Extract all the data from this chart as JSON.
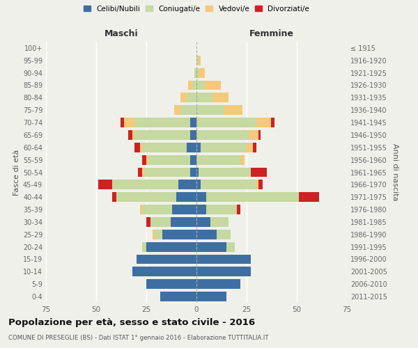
{
  "age_groups": [
    "0-4",
    "5-9",
    "10-14",
    "15-19",
    "20-24",
    "25-29",
    "30-34",
    "35-39",
    "40-44",
    "45-49",
    "50-54",
    "55-59",
    "60-64",
    "65-69",
    "70-74",
    "75-79",
    "80-84",
    "85-89",
    "90-94",
    "95-99",
    "100+"
  ],
  "birth_years": [
    "2011-2015",
    "2006-2010",
    "2001-2005",
    "1996-2000",
    "1991-1995",
    "1986-1990",
    "1981-1985",
    "1976-1980",
    "1971-1975",
    "1966-1970",
    "1961-1965",
    "1956-1960",
    "1951-1955",
    "1946-1950",
    "1941-1945",
    "1936-1940",
    "1931-1935",
    "1926-1930",
    "1921-1925",
    "1916-1920",
    "≤ 1915"
  ],
  "male": {
    "celibi": [
      18,
      25,
      32,
      30,
      25,
      17,
      13,
      12,
      10,
      9,
      3,
      3,
      5,
      3,
      3,
      0,
      0,
      0,
      0,
      0,
      0
    ],
    "coniugati": [
      0,
      0,
      0,
      0,
      2,
      4,
      10,
      15,
      30,
      33,
      23,
      21,
      22,
      28,
      28,
      8,
      5,
      2,
      1,
      0,
      0
    ],
    "vedovi": [
      0,
      0,
      0,
      0,
      0,
      1,
      0,
      1,
      0,
      0,
      1,
      1,
      1,
      1,
      5,
      3,
      3,
      2,
      0,
      0,
      0
    ],
    "divorziati": [
      0,
      0,
      0,
      0,
      0,
      0,
      2,
      0,
      2,
      7,
      2,
      2,
      3,
      2,
      2,
      0,
      0,
      0,
      0,
      0,
      0
    ]
  },
  "female": {
    "nubili": [
      15,
      22,
      27,
      27,
      15,
      10,
      7,
      5,
      5,
      2,
      1,
      0,
      2,
      0,
      0,
      0,
      0,
      0,
      0,
      0,
      0
    ],
    "coniugate": [
      0,
      0,
      0,
      0,
      4,
      7,
      9,
      15,
      46,
      28,
      26,
      22,
      23,
      26,
      30,
      14,
      8,
      4,
      1,
      1,
      0
    ],
    "vedove": [
      0,
      0,
      0,
      0,
      0,
      0,
      0,
      0,
      0,
      1,
      0,
      2,
      3,
      5,
      7,
      9,
      8,
      8,
      3,
      1,
      0
    ],
    "divorziate": [
      0,
      0,
      0,
      0,
      0,
      0,
      0,
      2,
      10,
      2,
      8,
      0,
      2,
      1,
      2,
      0,
      0,
      0,
      0,
      0,
      0
    ]
  },
  "colors": {
    "celibi": "#3e6fa3",
    "coniugati": "#c5d9a0",
    "vedovi": "#f5c97a",
    "divorziati": "#cc2222"
  },
  "title": "Popolazione per età, sesso e stato civile - 2016",
  "subtitle": "COMUNE DI PRESEGLIE (BS) - Dati ISTAT 1° gennaio 2016 - Elaborazione TUTTITALIA.IT",
  "xlabel_left": "Maschi",
  "xlabel_right": "Femmine",
  "ylabel_left": "Fasce di età",
  "ylabel_right": "Anni di nascita",
  "xlim": 75,
  "background_color": "#f0f0eb",
  "legend_labels": [
    "Celibi/Nubili",
    "Coniugati/e",
    "Vedovi/e",
    "Divorziati/e"
  ]
}
